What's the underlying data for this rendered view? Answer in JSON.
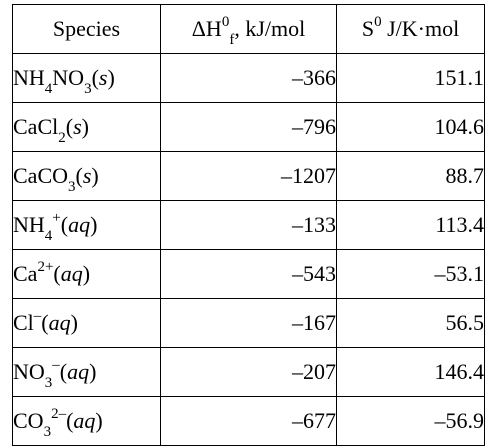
{
  "table": {
    "headers": {
      "species": "Species",
      "dh_prefix": "ΔH",
      "dh_sup": "0",
      "dh_sub": "f",
      "dh_unit": ", kJ/mol",
      "s_prefix": "S",
      "s_sup": "0",
      "s_unit": " J/K·mol"
    },
    "rows": [
      {
        "formula": [
          {
            "t": "NH"
          },
          {
            "sub": "4"
          },
          {
            "t": "NO"
          },
          {
            "sub": "3"
          }
        ],
        "state": "s",
        "dh": "–366",
        "s": "151.1"
      },
      {
        "formula": [
          {
            "t": "CaCl"
          },
          {
            "sub": "2"
          }
        ],
        "state": "s",
        "dh": "–796",
        "s": "104.6"
      },
      {
        "formula": [
          {
            "t": "CaCO"
          },
          {
            "sub": "3"
          }
        ],
        "state": "s",
        "dh": "–1207",
        "s": "88.7"
      },
      {
        "formula": [
          {
            "t": "NH"
          },
          {
            "sub": "4"
          },
          {
            "sup": "+"
          }
        ],
        "state": "aq",
        "dh": "–133",
        "s": "113.4"
      },
      {
        "formula": [
          {
            "t": "Ca"
          },
          {
            "sup": "2+"
          }
        ],
        "state": "aq",
        "dh": "–543",
        "s": "–53.1"
      },
      {
        "formula": [
          {
            "t": "Cl"
          },
          {
            "sup": "–"
          }
        ],
        "state": "aq",
        "dh": "–167",
        "s": "56.5"
      },
      {
        "formula": [
          {
            "t": "NO"
          },
          {
            "sub": "3"
          },
          {
            "sup": "–"
          }
        ],
        "state": "aq",
        "dh": "–207",
        "s": "146.4"
      },
      {
        "formula": [
          {
            "t": "CO"
          },
          {
            "sub": "3"
          },
          {
            "sup": "2–"
          }
        ],
        "state": "aq",
        "dh": "–677",
        "s": "–56.9"
      }
    ]
  }
}
